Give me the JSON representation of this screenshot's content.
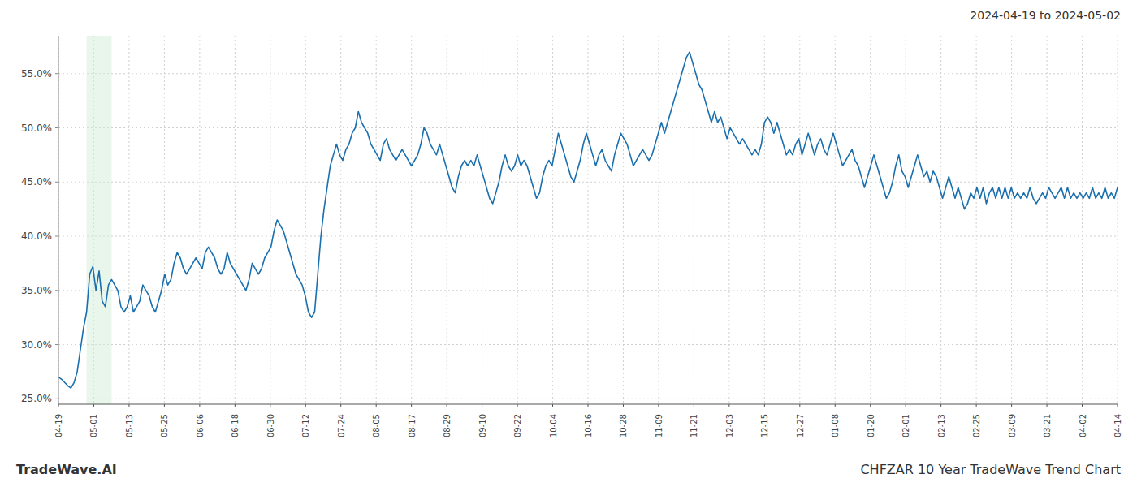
{
  "chart_data": {
    "type": "line",
    "title": "CHFZAR 10 Year TradeWave Trend Chart",
    "subtitle": "2024-04-19 to 2024-05-02",
    "annotations": [
      "TradeWave.AI"
    ],
    "color": "#1a6faf",
    "grid": true,
    "highlight": {
      "x": [
        9,
        17
      ],
      "color": "#d4edda"
    },
    "xlim": [
      0,
      339
    ],
    "xticks": [
      {
        "value": 0,
        "label": "04-19"
      },
      {
        "value": 11.3,
        "label": "05-01"
      },
      {
        "value": 22.6,
        "label": "05-13"
      },
      {
        "value": 33.9,
        "label": "05-25"
      },
      {
        "value": 45.2,
        "label": "06-06"
      },
      {
        "value": 56.5,
        "label": "06-18"
      },
      {
        "value": 67.8,
        "label": "06-30"
      },
      {
        "value": 79.1,
        "label": "07-12"
      },
      {
        "value": 90.4,
        "label": "07-24"
      },
      {
        "value": 101.7,
        "label": "08-05"
      },
      {
        "value": 113,
        "label": "08-17"
      },
      {
        "value": 124.3,
        "label": "08-29"
      },
      {
        "value": 135.6,
        "label": "09-10"
      },
      {
        "value": 146.9,
        "label": "09-22"
      },
      {
        "value": 158.2,
        "label": "10-04"
      },
      {
        "value": 169.5,
        "label": "10-16"
      },
      {
        "value": 180.8,
        "label": "10-28"
      },
      {
        "value": 192.1,
        "label": "11-09"
      },
      {
        "value": 203.4,
        "label": "11-21"
      },
      {
        "value": 214.7,
        "label": "12-03"
      },
      {
        "value": 226,
        "label": "12-15"
      },
      {
        "value": 237.3,
        "label": "12-27"
      },
      {
        "value": 248.6,
        "label": "01-08"
      },
      {
        "value": 259.9,
        "label": "01-20"
      },
      {
        "value": 271.2,
        "label": "02-01"
      },
      {
        "value": 282.5,
        "label": "02-13"
      },
      {
        "value": 293.8,
        "label": "02-25"
      },
      {
        "value": 305.1,
        "label": "03-09"
      },
      {
        "value": 316.4,
        "label": "03-21"
      },
      {
        "value": 327.7,
        "label": "04-02"
      },
      {
        "value": 339,
        "label": "04-14"
      }
    ],
    "ylim": [
      24.5,
      58.5
    ],
    "yticks": [
      {
        "value": 25.0,
        "label": "25.0%"
      },
      {
        "value": 30.0,
        "label": "30.0%"
      },
      {
        "value": 35.0,
        "label": "35.0%"
      },
      {
        "value": 40.0,
        "label": "40.0%"
      },
      {
        "value": 45.0,
        "label": "45.0%"
      },
      {
        "value": 50.0,
        "label": "50.0%"
      },
      {
        "value": 55.0,
        "label": "55.0%"
      }
    ],
    "x": [
      0,
      1,
      2,
      3,
      4,
      5,
      6,
      7,
      8,
      9,
      10,
      11,
      12,
      13,
      14,
      15,
      16,
      17,
      18,
      19,
      20,
      21,
      22,
      23,
      24,
      25,
      26,
      27,
      28,
      29,
      30,
      31,
      32,
      33,
      34,
      35,
      36,
      37,
      38,
      39,
      40,
      41,
      42,
      43,
      44,
      45,
      46,
      47,
      48,
      49,
      50,
      51,
      52,
      53,
      54,
      55,
      56,
      57,
      58,
      59,
      60,
      61,
      62,
      63,
      64,
      65,
      66,
      67,
      68,
      69,
      70,
      71,
      72,
      73,
      74,
      75,
      76,
      77,
      78,
      79,
      80,
      81,
      82,
      83,
      84,
      85,
      86,
      87,
      88,
      89,
      90,
      91,
      92,
      93,
      94,
      95,
      96,
      97,
      98,
      99,
      100,
      101,
      102,
      103,
      104,
      105,
      106,
      107,
      108,
      109,
      110,
      111,
      112,
      113,
      114,
      115,
      116,
      117,
      118,
      119,
      120,
      121,
      122,
      123,
      124,
      125,
      126,
      127,
      128,
      129,
      130,
      131,
      132,
      133,
      134,
      135,
      136,
      137,
      138,
      139,
      140,
      141,
      142,
      143,
      144,
      145,
      146,
      147,
      148,
      149,
      150,
      151,
      152,
      153,
      154,
      155,
      156,
      157,
      158,
      159,
      160,
      161,
      162,
      163,
      164,
      165,
      166,
      167,
      168,
      169,
      170,
      171,
      172,
      173,
      174,
      175,
      176,
      177,
      178,
      179,
      180,
      181,
      182,
      183,
      184,
      185,
      186,
      187,
      188,
      189,
      190,
      191,
      192,
      193,
      194,
      195,
      196,
      197,
      198,
      199,
      200,
      201,
      202,
      203,
      204,
      205,
      206,
      207,
      208,
      209,
      210,
      211,
      212,
      213,
      214,
      215,
      216,
      217,
      218,
      219,
      220,
      221,
      222,
      223,
      224,
      225,
      226,
      227,
      228,
      229,
      230,
      231,
      232,
      233,
      234,
      235,
      236,
      237,
      238,
      239,
      240,
      241,
      242,
      243,
      244,
      245,
      246,
      247,
      248,
      249,
      250,
      251,
      252,
      253,
      254,
      255,
      256,
      257,
      258,
      259,
      260,
      261,
      262,
      263,
      264,
      265,
      266,
      267,
      268,
      269,
      270,
      271,
      272,
      273,
      274,
      275,
      276,
      277,
      278,
      279,
      280,
      281,
      282,
      283,
      284,
      285,
      286,
      287,
      288,
      289,
      290,
      291,
      292,
      293,
      294,
      295,
      296,
      297,
      298,
      299,
      300,
      301,
      302,
      303,
      304,
      305,
      306,
      307,
      308,
      309,
      310,
      311,
      312,
      313,
      314,
      315,
      316,
      317,
      318,
      319,
      320,
      321,
      322,
      323,
      324,
      325,
      326,
      327,
      328,
      329,
      330,
      331,
      332,
      333,
      334,
      335,
      336,
      337,
      338,
      339
    ],
    "values": [
      27.0,
      26.8,
      26.5,
      26.2,
      26.0,
      26.5,
      27.5,
      29.5,
      31.5,
      33.0,
      36.5,
      37.2,
      35.0,
      36.8,
      34.0,
      33.5,
      35.5,
      36.0,
      35.5,
      35.0,
      33.5,
      33.0,
      33.5,
      34.5,
      33.0,
      33.5,
      34.0,
      35.5,
      35.0,
      34.5,
      33.5,
      33.0,
      34.0,
      35.0,
      36.5,
      35.5,
      36.0,
      37.5,
      38.5,
      38.0,
      37.0,
      36.5,
      37.0,
      37.5,
      38.0,
      37.5,
      37.0,
      38.5,
      39.0,
      38.5,
      38.0,
      37.0,
      36.5,
      37.0,
      38.5,
      37.5,
      37.0,
      36.5,
      36.0,
      35.5,
      35.0,
      36.0,
      37.5,
      37.0,
      36.5,
      37.0,
      38.0,
      38.5,
      39.0,
      40.5,
      41.5,
      41.0,
      40.5,
      39.5,
      38.5,
      37.5,
      36.5,
      36.0,
      35.5,
      34.5,
      33.0,
      32.5,
      33.0,
      36.5,
      40.0,
      42.5,
      44.5,
      46.5,
      47.5,
      48.5,
      47.5,
      47.0,
      48.0,
      48.5,
      49.5,
      50.0,
      51.5,
      50.5,
      50.0,
      49.5,
      48.5,
      48.0,
      47.5,
      47.0,
      48.5,
      49.0,
      48.0,
      47.5,
      47.0,
      47.5,
      48.0,
      47.5,
      47.0,
      46.5,
      47.0,
      47.5,
      48.5,
      50.0,
      49.5,
      48.5,
      48.0,
      47.5,
      48.5,
      47.5,
      46.5,
      45.5,
      44.5,
      44.0,
      45.5,
      46.5,
      47.0,
      46.5,
      47.0,
      46.5,
      47.5,
      46.5,
      45.5,
      44.5,
      43.5,
      43.0,
      44.0,
      45.0,
      46.5,
      47.5,
      46.5,
      46.0,
      46.5,
      47.5,
      46.5,
      47.0,
      46.5,
      45.5,
      44.5,
      43.5,
      44.0,
      45.5,
      46.5,
      47.0,
      46.5,
      48.0,
      49.5,
      48.5,
      47.5,
      46.5,
      45.5,
      45.0,
      46.0,
      47.0,
      48.5,
      49.5,
      48.5,
      47.5,
      46.5,
      47.5,
      48.0,
      47.0,
      46.5,
      46.0,
      47.5,
      48.5,
      49.5,
      49.0,
      48.5,
      47.5,
      46.5,
      47.0,
      47.5,
      48.0,
      47.5,
      47.0,
      47.5,
      48.5,
      49.5,
      50.5,
      49.5,
      50.5,
      51.5,
      52.5,
      53.5,
      54.5,
      55.5,
      56.5,
      57.0,
      56.0,
      55.0,
      54.0,
      53.5,
      52.5,
      51.5,
      50.5,
      51.5,
      50.5,
      51.0,
      50.0,
      49.0,
      50.0,
      49.5,
      49.0,
      48.5,
      49.0,
      48.5,
      48.0,
      47.5,
      48.0,
      47.5,
      48.5,
      50.5,
      51.0,
      50.5,
      49.5,
      50.5,
      49.5,
      48.5,
      47.5,
      48.0,
      47.5,
      48.5,
      49.0,
      47.5,
      48.5,
      49.5,
      48.5,
      47.5,
      48.5,
      49.0,
      48.0,
      47.5,
      48.5,
      49.5,
      48.5,
      47.5,
      46.5,
      47.0,
      47.5,
      48.0,
      47.0,
      46.5,
      45.5,
      44.5,
      45.5,
      46.5,
      47.5,
      46.5,
      45.5,
      44.5,
      43.5,
      44.0,
      45.0,
      46.5,
      47.5,
      46.0,
      45.5,
      44.5,
      45.5,
      46.5,
      47.5,
      46.5,
      45.5,
      46.0,
      45.0,
      46.0,
      45.5,
      44.5,
      43.5,
      44.5,
      45.5,
      44.5,
      43.5,
      44.5,
      43.5,
      42.5,
      43.0,
      44.0,
      43.5,
      44.5,
      43.5,
      44.5,
      43.0,
      44.0,
      44.5,
      43.5,
      44.5,
      43.5,
      44.5,
      43.5,
      44.5,
      43.5,
      44.0,
      43.5,
      44.0,
      43.5,
      44.5,
      43.5,
      43.0,
      43.5,
      44.0,
      43.5,
      44.5,
      44.0,
      43.5,
      44.0,
      44.5,
      43.5,
      44.5,
      43.5,
      44.0,
      43.5,
      44.0,
      43.5,
      44.0,
      43.5,
      44.5,
      43.5,
      44.0,
      43.5,
      44.5,
      43.5,
      44.0,
      43.5,
      44.5
    ]
  }
}
